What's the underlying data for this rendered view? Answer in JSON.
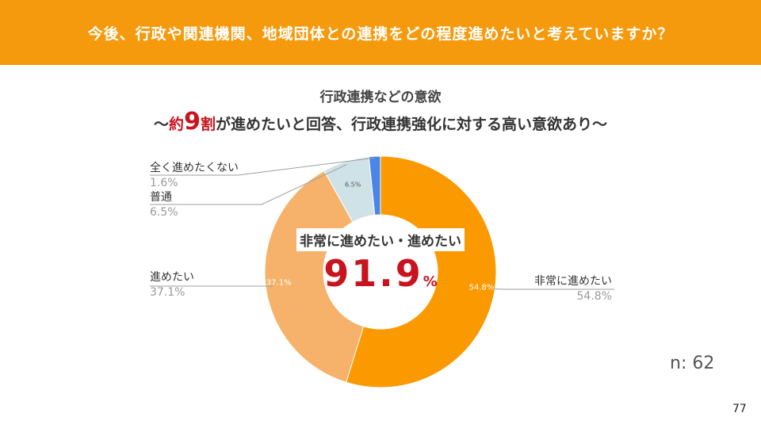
{
  "header": {
    "question": "今後、行政や関連機関、地域団体との連携をどの程度進めたいと考えていますか？"
  },
  "subtitle": "行政連携などの意欲",
  "headline": {
    "prefix": "〜",
    "red_before": "約",
    "big_number": "9",
    "red_after": "割",
    "rest": "が進めたいと回答、行政連携強化に対する高い意欲あり〜"
  },
  "center": {
    "label": "非常に進めたい・進めたい",
    "value": "91.9",
    "unit": "%"
  },
  "chart_data": {
    "type": "pie",
    "donut": true,
    "start": "top",
    "direction": "clockwise",
    "categories": [
      "非常に進めたい",
      "進めたい",
      "普通",
      "全く進めたくない"
    ],
    "values": [
      54.8,
      37.1,
      6.5,
      1.6
    ],
    "value_labels": [
      "54.8%",
      "37.1%",
      "6.5%",
      "1.6%"
    ],
    "inner_labels": [
      "54.8%",
      "37.1%",
      "6.5%",
      ""
    ],
    "colors": [
      "#fa9900",
      "#f6b26b",
      "#cfe2e7",
      "#4a86e8"
    ]
  },
  "sample_size": "n: 62",
  "page_number": "77"
}
